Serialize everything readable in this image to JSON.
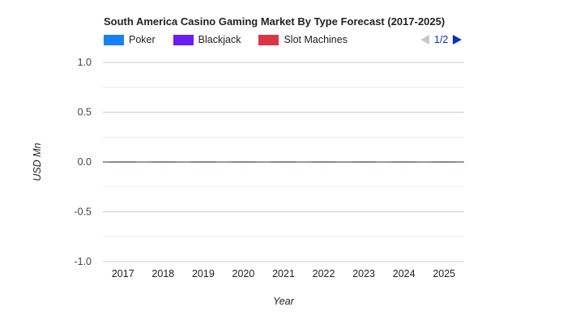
{
  "chart_data": {
    "type": "bar",
    "title": "South America Casino Gaming Market By Type Forecast (2017-2025)",
    "xlabel": "Year",
    "ylabel": "USD Mn",
    "categories": [
      "2017",
      "2018",
      "2019",
      "2020",
      "2021",
      "2022",
      "2023",
      "2024",
      "2025"
    ],
    "series": [
      {
        "name": "Poker",
        "color": "#1a7ef5",
        "values": [
          0,
          0,
          0,
          0,
          0,
          0,
          0,
          0,
          0
        ]
      },
      {
        "name": "Blackjack",
        "color": "#6a1ef5",
        "values": [
          0,
          0,
          0,
          0,
          0,
          0,
          0,
          0,
          0
        ]
      },
      {
        "name": "Slot Machines",
        "color": "#dc3545",
        "values": [
          0,
          0,
          0,
          0,
          0,
          0,
          0,
          0,
          0
        ]
      }
    ],
    "ylim": [
      -1.0,
      1.0
    ],
    "yticks": [
      "1.0",
      "0.5",
      "0.0",
      "-0.5",
      "-1.0"
    ],
    "grid": true,
    "legend_position": "top-left"
  },
  "legend": {
    "pager_text": "1/2"
  }
}
